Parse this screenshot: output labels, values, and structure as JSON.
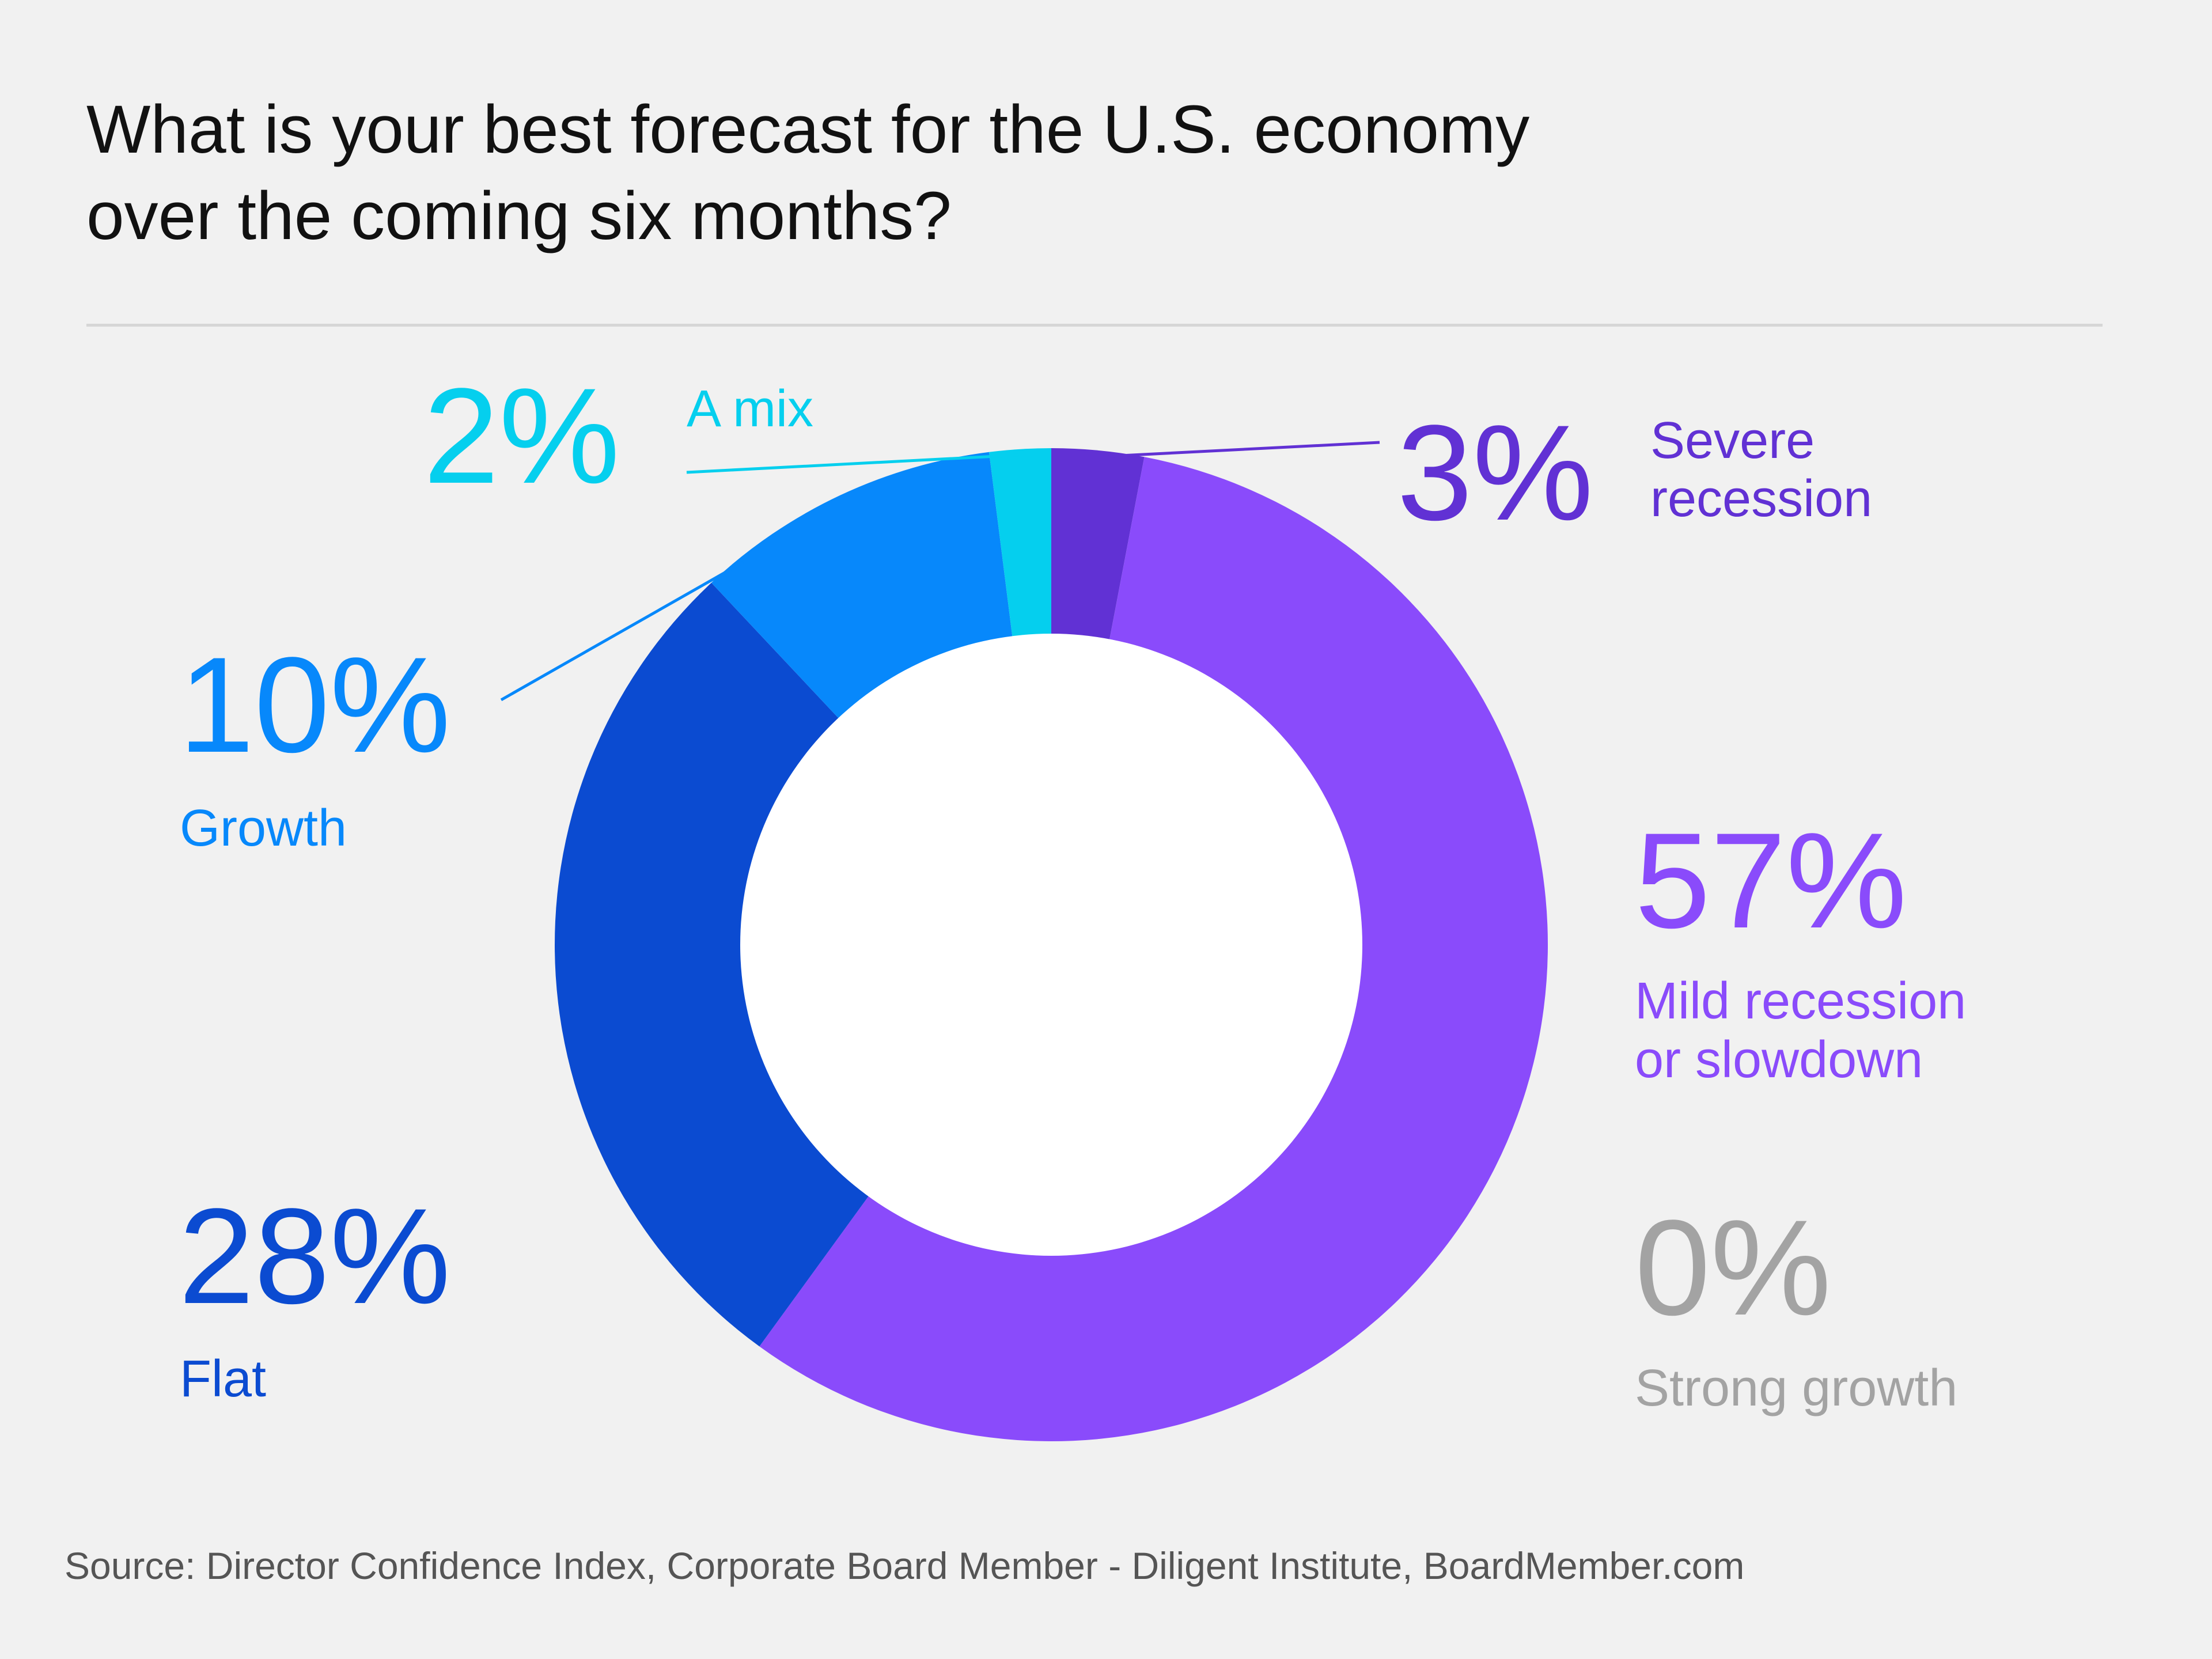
{
  "title_line1": "What is your best forecast for the U.S. economy",
  "title_line2": "over the coming six months?",
  "source": "Source: Director Confidence Index, Corporate Board Member - Diligent Institute, BoardMember.com",
  "chart_data": {
    "type": "pie",
    "style": "donut",
    "title": "What is your best forecast for the U.S. economy over the coming six months?",
    "start_angle_deg": 0,
    "direction": "clockwise",
    "slices": [
      {
        "name": "Severe recession",
        "value": 3,
        "label": "3%",
        "label_lines": [
          "Severe",
          "recession"
        ],
        "color": "#6131d4"
      },
      {
        "name": "Mild recession or slowdown",
        "value": 57,
        "label": "57%",
        "label_lines": [
          "Mild recession",
          "or slowdown"
        ],
        "color": "#8a4bfb"
      },
      {
        "name": "Strong growth",
        "value": 0,
        "label": "0%",
        "label_lines": [
          "Strong growth"
        ],
        "color": "#a3a3a3"
      },
      {
        "name": "Flat",
        "value": 28,
        "label": "28%",
        "label_lines": [
          "Flat"
        ],
        "color": "#0b4bd1"
      },
      {
        "name": "Growth",
        "value": 10,
        "label": "10%",
        "label_lines": [
          "Growth"
        ],
        "color": "#0788fb"
      },
      {
        "name": "A mix",
        "value": 2,
        "label": "2%",
        "label_lines": [
          "A mix"
        ],
        "color": "#05cfee"
      }
    ]
  }
}
